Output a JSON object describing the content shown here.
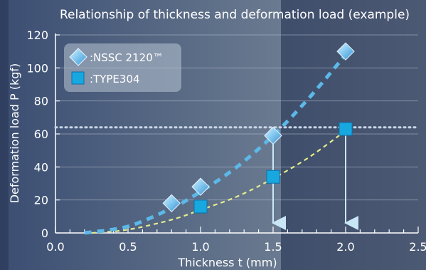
{
  "chart_data": {
    "type": "scatter",
    "title": "Relationship of thickness and deformation load (example)",
    "xlabel": "Thickness t (mm)",
    "ylabel": "Deformation load P (kgf)",
    "xlim": [
      0.0,
      2.5
    ],
    "ylim": [
      0,
      120
    ],
    "x_ticks": [
      "0.0",
      "0.5",
      "1.0",
      "1.5",
      "2.0",
      "2.5"
    ],
    "y_ticks": [
      "0",
      "20",
      "40",
      "60",
      "80",
      "100",
      "120"
    ],
    "grid": true,
    "legend_position": "top-left",
    "reference_line_y": 64,
    "reference_arrows_x": [
      1.5,
      2.0
    ],
    "series": [
      {
        "name": ":NSSC 2120™",
        "marker": "diamond",
        "color": "#5cb8e8",
        "points": [
          {
            "x": 0.8,
            "y": 18
          },
          {
            "x": 1.0,
            "y": 28
          },
          {
            "x": 1.5,
            "y": 59
          },
          {
            "x": 2.0,
            "y": 110
          }
        ],
        "fit_curve": [
          [
            0.2,
            0
          ],
          [
            0.5,
            4
          ],
          [
            0.8,
            15
          ],
          [
            1.0,
            25
          ],
          [
            1.25,
            40
          ],
          [
            1.5,
            59
          ],
          [
            1.75,
            82
          ],
          [
            2.0,
            108
          ]
        ]
      },
      {
        "name": ":TYPE304",
        "marker": "square",
        "color": "#17a8e0",
        "points": [
          {
            "x": 1.0,
            "y": 16
          },
          {
            "x": 1.5,
            "y": 34
          },
          {
            "x": 2.0,
            "y": 63
          }
        ],
        "fit_curve": [
          [
            0.25,
            0
          ],
          [
            0.5,
            2
          ],
          [
            0.8,
            8
          ],
          [
            1.0,
            14
          ],
          [
            1.25,
            22
          ],
          [
            1.5,
            33
          ],
          [
            1.75,
            46
          ],
          [
            2.0,
            62
          ]
        ]
      }
    ]
  }
}
